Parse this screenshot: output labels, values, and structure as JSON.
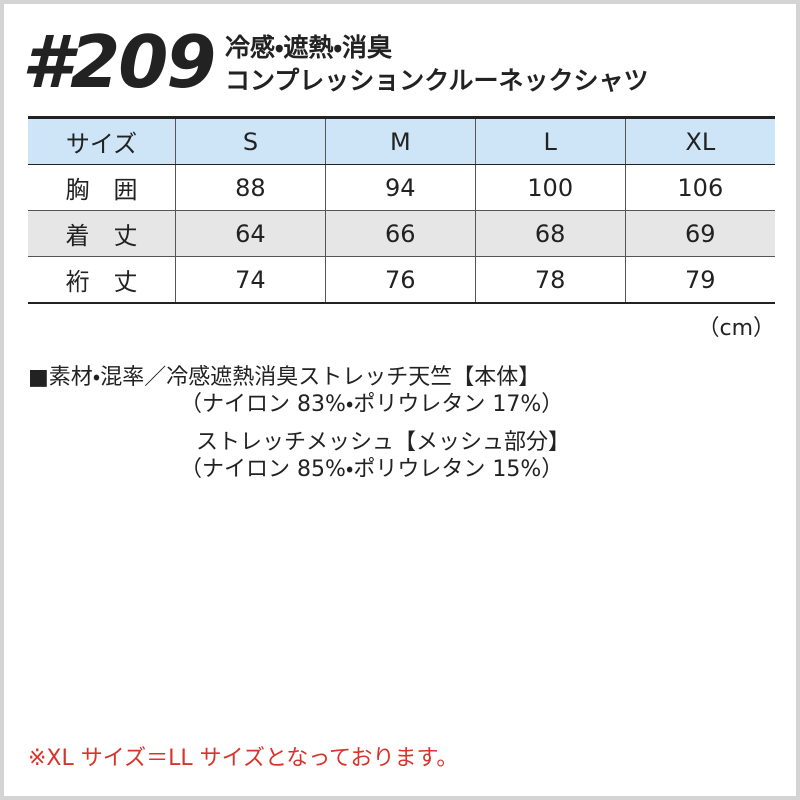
{
  "header": {
    "title": "#209",
    "subtitle": [
      "冷感・遮熱・消臭",
      "コンプレッションクルーネックシャツ"
    ]
  },
  "table": {
    "columns": [
      "サイズ",
      "S",
      "M",
      "L",
      "XL"
    ],
    "rows": [
      [
        "胸　囲",
        "88",
        "94",
        "100",
        "106"
      ],
      [
        "着　丈",
        "64",
        "66",
        "68",
        "69"
      ],
      [
        "裄　丈",
        "74",
        "76",
        "78",
        "79"
      ]
    ]
  },
  "unit": "（cm）",
  "materials": [
    "■素材・混率／冷感遮熱消臭ストレッチ天竺【本体】",
    "（ナイロン 83%・ポリウレタン 17%）",
    "ストレッチメッシュ【メッシュ部分】",
    "（ナイロン 85%・ポリウレタン 15%）"
  ],
  "note": "※XL サイズ＝LL サイズとなっております。"
}
